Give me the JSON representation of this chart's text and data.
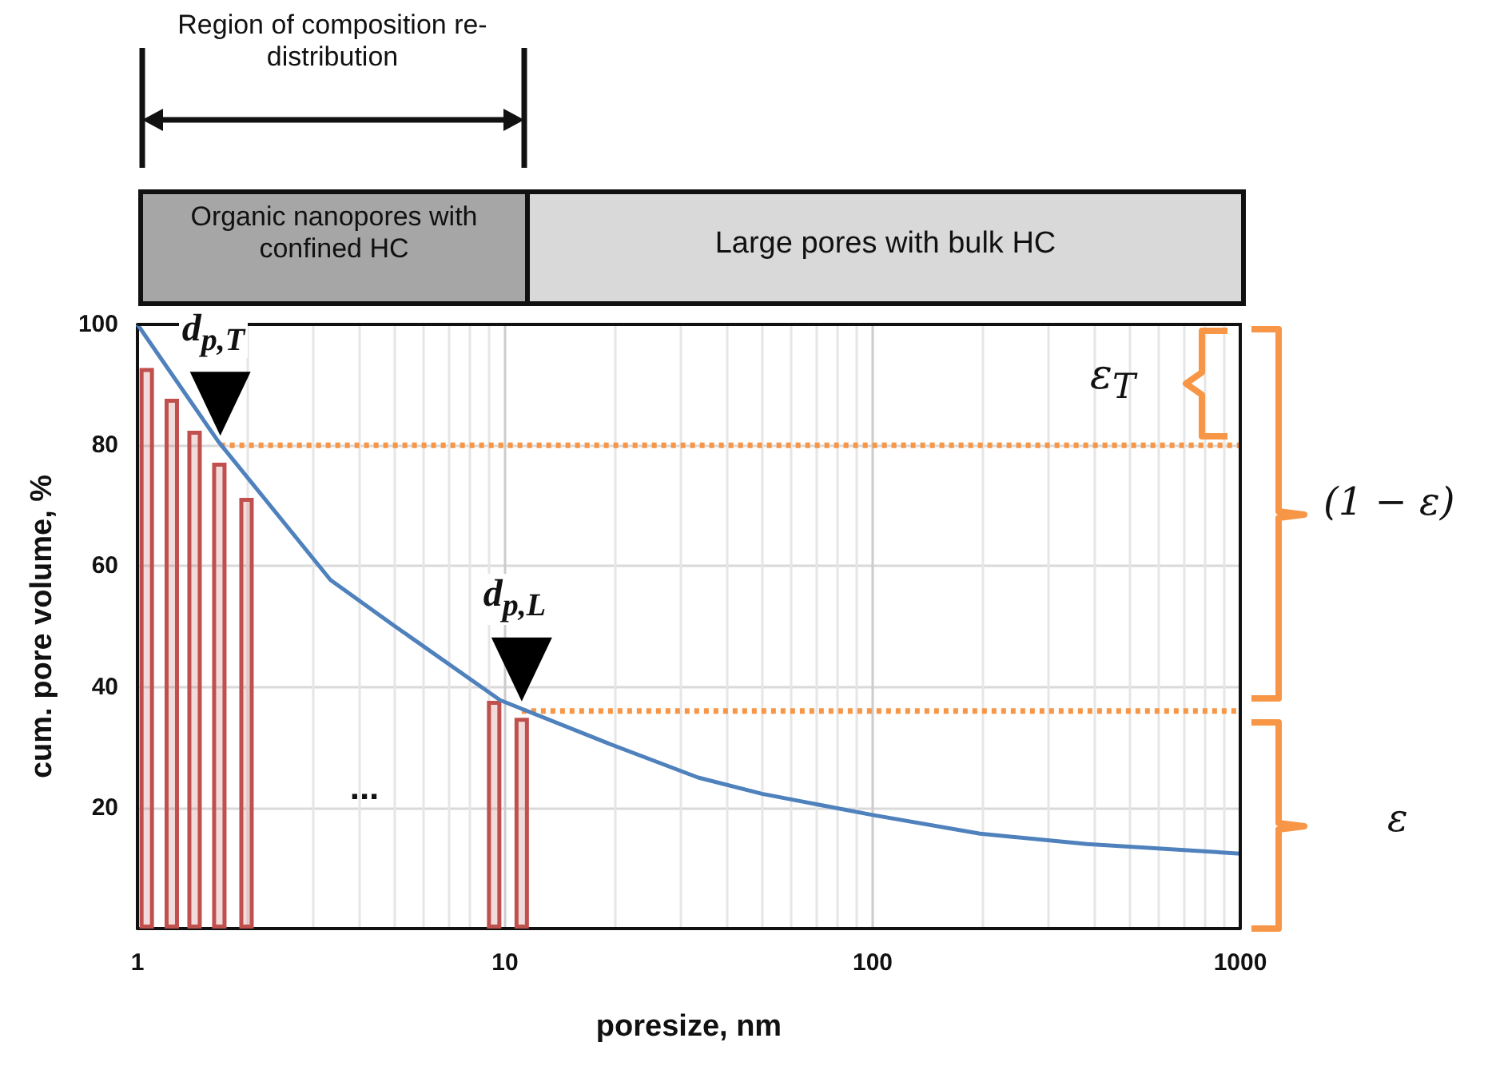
{
  "chart_data": {
    "type": "line",
    "xlabel": "poresize, nm",
    "ylabel": "cum. pore volume, %",
    "xlim": [
      1,
      1000
    ],
    "xticks": [
      1,
      10,
      100,
      1000
    ],
    "ylim": [
      0,
      100
    ],
    "yticks": [
      20,
      40,
      60,
      80,
      100
    ],
    "log": "x",
    "grid": true,
    "marker": "none",
    "series": [
      {
        "color": "#4f81bd",
        "x": [
          1,
          1.66,
          3.35,
          5,
          9.7,
          19,
          33.5,
          50,
          100,
          196,
          383,
          1000
        ],
        "values": [
          100,
          80.6,
          57.7,
          50.1,
          37.8,
          30.7,
          25,
          22.3,
          18.8,
          15.7,
          14,
          12.4
        ]
      },
      {
        "type": "bar",
        "color": "#c0504d",
        "x": [
          1.06,
          1.24,
          1.43,
          1.67,
          1.98,
          9.34,
          11.1
        ],
        "values": [
          92.8,
          87.7,
          82.4,
          77.1,
          71.3,
          37.7,
          34.9
        ]
      },
      {
        "color": "#f79646",
        "line_style": "dotted",
        "x": [
          1.68,
          1000
        ],
        "values": [
          80,
          80
        ]
      },
      {
        "color": "#f79646",
        "line_style": "dotted",
        "x": [
          11.1,
          1000
        ],
        "values": [
          36,
          36
        ]
      }
    ],
    "annotations": [
      "Region of composition re-distribution",
      "Organic nanopores with confined HC",
      "Large pores with bulk HC",
      {
        "text": "d$_{p,T}$",
        "x": 1.68,
        "y": 80
      },
      {
        "text": "d$_{p,L}$",
        "x": 11.1,
        "y": 36
      },
      "...",
      "ε$_{T}$",
      "(1 − ε)",
      "ε"
    ]
  }
}
